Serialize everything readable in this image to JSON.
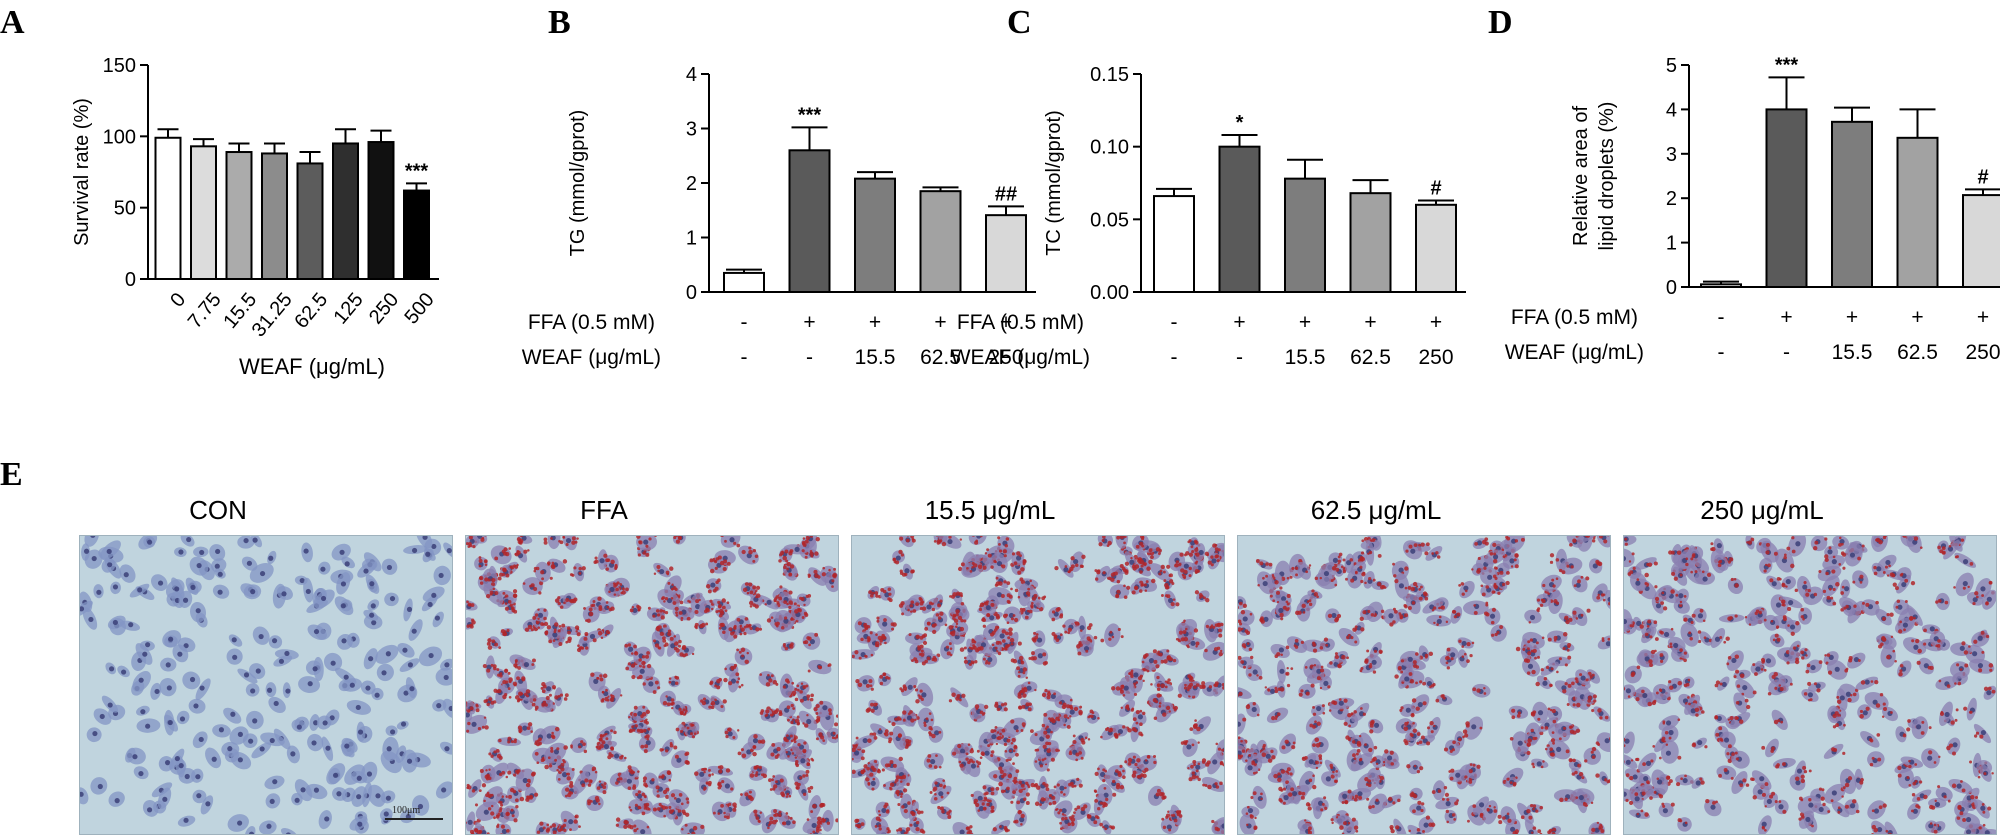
{
  "panel_letters": {
    "a": "A",
    "b": "B",
    "c": "C",
    "d": "D",
    "e": "E"
  },
  "chart_data": [
    {
      "id": "A",
      "type": "bar",
      "ylabel": "Survival rate (%)",
      "xlabel": "WEAF  (μg/mL)",
      "ylim": [
        0,
        150
      ],
      "yticks": [
        "0",
        "50",
        "100",
        "150"
      ],
      "categories": [
        "0",
        "7.75",
        "15.5",
        "31.25",
        "62.5",
        "125",
        "250",
        "500"
      ],
      "values": [
        99,
        93,
        89,
        88,
        81,
        95,
        96,
        62
      ],
      "errors": [
        6,
        5,
        6,
        7,
        8,
        10,
        8,
        5
      ],
      "colors": [
        "#ffffff",
        "#dcdcdc",
        "#ababab",
        "#8c8c8c",
        "#5c5c5c",
        "#2f2f2f",
        "#111111",
        "#000000"
      ],
      "annotations": [
        "",
        "",
        "",
        "",
        "",
        "",
        "",
        "***"
      ]
    },
    {
      "id": "B",
      "type": "bar",
      "ylabel": "TG (mmol/gprot)",
      "ylim": [
        0,
        4
      ],
      "yticks": [
        "0",
        "1",
        "2",
        "3",
        "4"
      ],
      "row_labels": [
        "FFA (0.5 mM)",
        "WEAF (μg/mL)"
      ],
      "row1": [
        "-",
        "+",
        "+",
        "+",
        "+"
      ],
      "row2": [
        "-",
        "-",
        "15.5",
        "62.5",
        "250"
      ],
      "values": [
        0.35,
        2.6,
        2.08,
        1.85,
        1.41
      ],
      "errors": [
        0.06,
        0.42,
        0.12,
        0.07,
        0.16
      ],
      "colors": [
        "#ffffff",
        "#5a5a5a",
        "#7d7d7d",
        "#a2a2a2",
        "#d8d8d8"
      ],
      "annotations": [
        "",
        "***",
        "",
        "",
        "##"
      ]
    },
    {
      "id": "C",
      "type": "bar",
      "ylabel": "TC (mmol/gprot)",
      "ylim": [
        0,
        0.15
      ],
      "yticks": [
        "0.00",
        "0.05",
        "0.10",
        "0.15"
      ],
      "row_labels": [
        "FFA (0.5 mM)",
        "WEAF (μg/mL)"
      ],
      "row1": [
        "-",
        "+",
        "+",
        "+",
        "+"
      ],
      "row2": [
        "-",
        "-",
        "15.5",
        "62.5",
        "250"
      ],
      "values": [
        0.066,
        0.1,
        0.078,
        0.068,
        0.06
      ],
      "errors": [
        0.005,
        0.008,
        0.013,
        0.009,
        0.003
      ],
      "colors": [
        "#ffffff",
        "#5a5a5a",
        "#7d7d7d",
        "#a2a2a2",
        "#d8d8d8"
      ],
      "annotations": [
        "",
        "*",
        "",
        "",
        "#"
      ]
    },
    {
      "id": "D",
      "type": "bar",
      "ylabel_lines": [
        "Relative area of",
        "lipid droplets (%)"
      ],
      "ylim": [
        0,
        5
      ],
      "yticks": [
        "0",
        "1",
        "2",
        "3",
        "4",
        "5"
      ],
      "row_labels": [
        "FFA (0.5 mM)",
        "WEAF (μg/mL)"
      ],
      "row1": [
        "-",
        "+",
        "+",
        "+",
        "+"
      ],
      "row2": [
        "-",
        "-",
        "15.5",
        "62.5",
        "250"
      ],
      "values": [
        0.06,
        4.0,
        3.72,
        3.36,
        2.07
      ],
      "errors": [
        0.06,
        0.72,
        0.32,
        0.64,
        0.13
      ],
      "colors": [
        "#ffffff",
        "#5a5a5a",
        "#7d7d7d",
        "#a2a2a2",
        "#d8d8d8"
      ],
      "annotations": [
        "",
        "***",
        "",
        "",
        "#"
      ]
    }
  ],
  "micrographs": [
    {
      "label": "CON",
      "stain": "none"
    },
    {
      "label": "FFA",
      "stain": "heavy"
    },
    {
      "label": "15.5 μg/mL",
      "stain": "heavy"
    },
    {
      "label": "62.5 μg/mL",
      "stain": "medium"
    },
    {
      "label": "250 μg/mL",
      "stain": "light"
    }
  ],
  "scale_bar": "100μm",
  "colors": {
    "background": "#c0d4de",
    "cell_blue": "#6a7fb4",
    "lipid_red": "#b0262a",
    "nucleus": "#3b3f78"
  }
}
